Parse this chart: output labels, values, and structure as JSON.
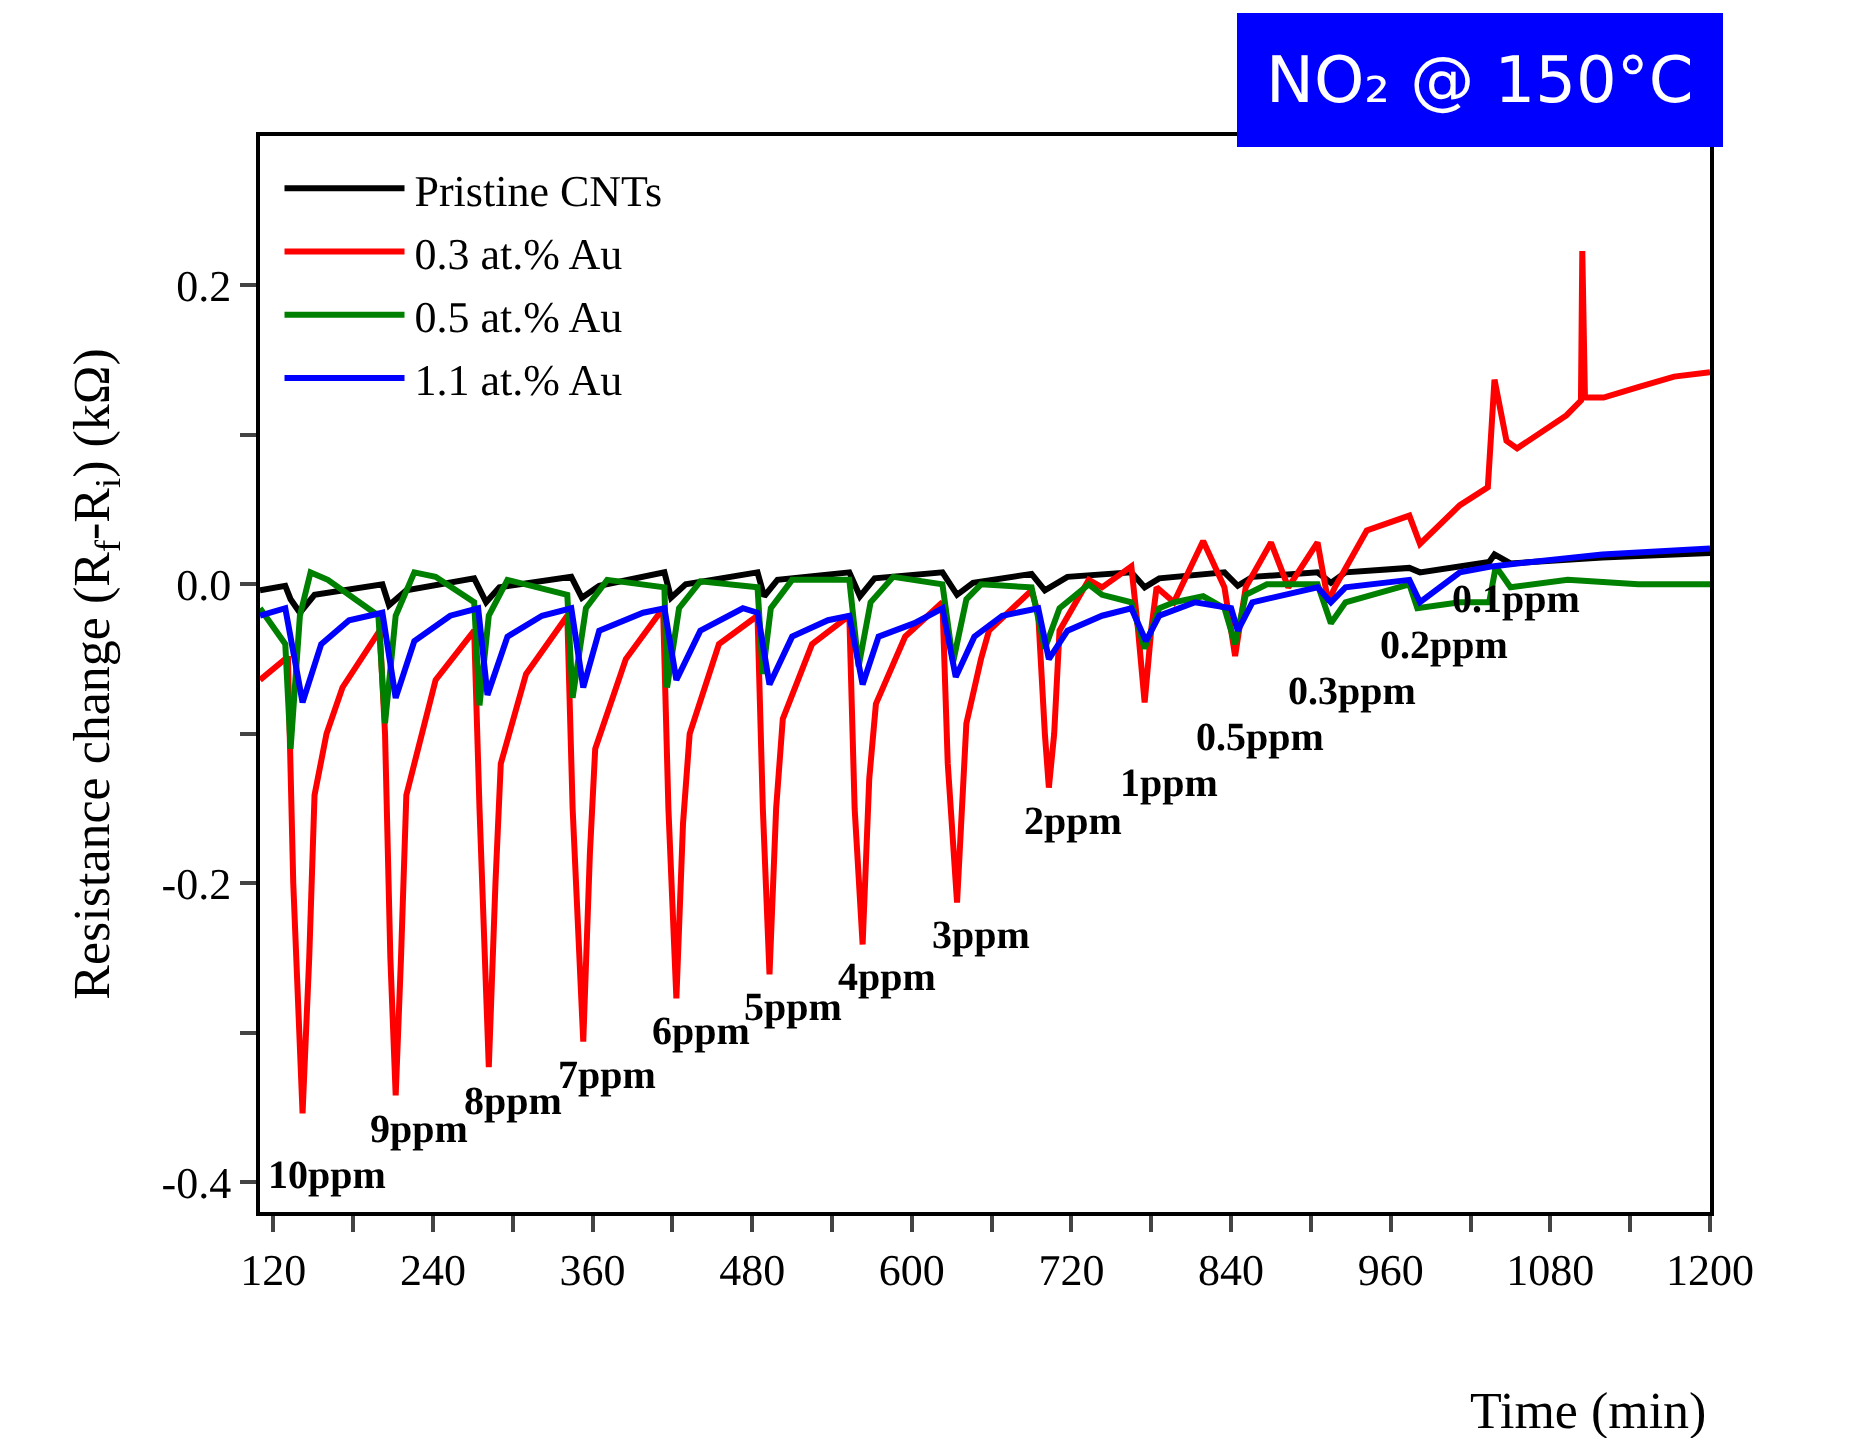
{
  "chart_data": {
    "type": "line",
    "title": "NO₂ @ 150°C",
    "xlabel": "Time (min)",
    "ylabel": "Resistance change (R$_{f}$-R$_{i}$) (kΩ)",
    "xlim": [
      110,
      1200
    ],
    "ylim": [
      -0.42,
      0.3
    ],
    "xticks": [
      120,
      {
        "value": 180,
        "label": null
      },
      240,
      {
        "value": 300,
        "label": null
      },
      360,
      {
        "value": 420,
        "label": null
      },
      480,
      {
        "value": 540,
        "label": null
      },
      600,
      {
        "value": 660,
        "label": null
      },
      720,
      {
        "value": 780,
        "label": null
      },
      840,
      {
        "value": 900,
        "label": null
      },
      960,
      {
        "value": 1020,
        "label": null
      },
      1080,
      {
        "value": 1140,
        "label": null
      },
      1200
    ],
    "yticks": [
      -0.4,
      {
        "value": -0.3,
        "label": null
      },
      -0.2,
      {
        "value": -0.1,
        "label": null
      },
      {
        "value": 0,
        "label": "0.0"
      },
      {
        "value": 0.1,
        "label": null
      },
      0.2
    ],
    "legend": "top left",
    "line_style": "solid",
    "marker": "none",
    "series": [
      {
        "name": "Pristine CNTs",
        "color": "#000000",
        "x": [
          110,
          129,
          133,
          140,
          151,
          202,
          207,
          220,
          271,
          280,
          290,
          344,
          352,
          365,
          414,
          419,
          430,
          484,
          489,
          499,
          553,
          561,
          572,
          623,
          634,
          646,
          690,
          700,
          717,
          765,
          775,
          786,
          835,
          845,
          856,
          905,
          915,
          926,
          974,
          982,
          1034,
          1038,
          1050,
          1119,
          1200
        ],
        "values": [
          -0.004,
          -0.001,
          -0.01,
          -0.019,
          -0.007,
          0.0,
          -0.014,
          -0.004,
          0.004,
          -0.012,
          -0.002,
          0.005,
          -0.009,
          -0.001,
          0.008,
          -0.009,
          0.0,
          0.008,
          -0.008,
          0.003,
          0.008,
          -0.008,
          0.004,
          0.008,
          -0.007,
          0.001,
          0.007,
          -0.004,
          0.005,
          0.008,
          -0.002,
          0.004,
          0.008,
          -0.001,
          0.005,
          0.008,
          0.001,
          0.008,
          0.011,
          0.008,
          0.015,
          0.02,
          0.014,
          0.018,
          0.021
        ]
      },
      {
        "name": "0.3 at.% Au",
        "color": "#ff0000",
        "x": [
          110,
          129,
          131,
          135,
          142,
          147,
          151,
          160,
          172,
          200,
          204,
          208,
          212,
          216,
          220,
          242,
          271,
          275,
          282,
          287,
          291,
          310,
          341,
          345,
          353,
          358,
          362,
          385,
          413,
          417,
          423,
          428,
          433,
          455,
          484,
          488,
          493,
          498,
          503,
          525,
          553,
          557,
          563,
          568,
          573,
          595,
          623,
          627,
          634,
          641,
          652,
          658,
          690,
          695,
          700,
          703,
          707,
          711,
          733,
          743,
          765,
          770,
          775,
          780,
          784,
          797,
          819,
          835,
          843,
          851,
          870,
          883,
          905,
          913,
          918,
          942,
          974,
          982,
          1012,
          1033,
          1038,
          1047,
          1055,
          1092,
          1103,
          1104,
          1106,
          1120,
          1146,
          1173,
          1200
        ],
        "values": [
          -0.064,
          -0.05,
          -0.05,
          -0.2,
          -0.354,
          -0.25,
          -0.141,
          -0.1,
          -0.069,
          -0.031,
          -0.1,
          -0.25,
          -0.342,
          -0.25,
          -0.141,
          -0.064,
          -0.031,
          -0.15,
          -0.323,
          -0.2,
          -0.12,
          -0.06,
          -0.021,
          -0.15,
          -0.306,
          -0.18,
          -0.11,
          -0.05,
          -0.016,
          -0.15,
          -0.277,
          -0.16,
          -0.1,
          -0.04,
          -0.021,
          -0.15,
          -0.261,
          -0.15,
          -0.09,
          -0.04,
          -0.021,
          -0.15,
          -0.241,
          -0.13,
          -0.08,
          -0.035,
          -0.012,
          -0.12,
          -0.213,
          -0.093,
          -0.05,
          -0.031,
          -0.004,
          -0.02,
          -0.1,
          -0.136,
          -0.1,
          -0.031,
          0.003,
          -0.002,
          0.012,
          -0.03,
          -0.079,
          -0.03,
          -0.002,
          -0.012,
          0.029,
          -0.002,
          -0.048,
          -0.002,
          0.028,
          -0.002,
          0.028,
          -0.012,
          -0.002,
          0.036,
          0.046,
          0.027,
          0.053,
          0.065,
          0.137,
          0.096,
          0.091,
          0.113,
          0.123,
          0.223,
          0.125,
          0.125,
          0.132,
          0.139,
          0.142
        ]
      },
      {
        "name": "0.5 at.% Au",
        "color": "#008000",
        "x": [
          110,
          129,
          133,
          140,
          148,
          161,
          199,
          204,
          212,
          226,
          242,
          271,
          275,
          282,
          296,
          341,
          345,
          355,
          371,
          414,
          416,
          425,
          441,
          484,
          488,
          494,
          510,
          553,
          560,
          569,
          586,
          623,
          631,
          641,
          652,
          690,
          700,
          711,
          733,
          743,
          765,
          775,
          786,
          797,
          819,
          835,
          843,
          851,
          867,
          905,
          915,
          926,
          974,
          980,
          1012,
          1034,
          1039,
          1050,
          1093,
          1146,
          1200
        ],
        "values": [
          -0.016,
          -0.04,
          -0.11,
          -0.021,
          0.008,
          0.003,
          -0.021,
          -0.093,
          -0.021,
          0.008,
          0.005,
          -0.012,
          -0.081,
          -0.021,
          0.003,
          -0.007,
          -0.076,
          -0.016,
          0.003,
          -0.002,
          -0.069,
          -0.016,
          0.002,
          -0.002,
          -0.06,
          -0.016,
          0.003,
          0.003,
          -0.055,
          -0.012,
          0.005,
          0.0,
          -0.052,
          -0.01,
          0.0,
          -0.002,
          -0.043,
          -0.016,
          0.0,
          -0.007,
          -0.012,
          -0.043,
          -0.016,
          -0.012,
          -0.008,
          -0.016,
          -0.04,
          -0.007,
          0.0,
          0.0,
          -0.026,
          -0.012,
          0.0,
          -0.016,
          -0.012,
          -0.012,
          0.012,
          -0.002,
          0.003,
          0.0,
          0.0
        ]
      },
      {
        "name": "1.1 at.% Au",
        "color": "#0000ff",
        "x": [
          110,
          129,
          142,
          156,
          177,
          202,
          212,
          226,
          253,
          274,
          281,
          296,
          322,
          344,
          353,
          365,
          398,
          414,
          423,
          441,
          473,
          484,
          493,
          510,
          537,
          553,
          563,
          575,
          602,
          623,
          633,
          647,
          668,
          695,
          703,
          717,
          743,
          765,
          776,
          786,
          813,
          840,
          845,
          856,
          905,
          915,
          926,
          974,
          982,
          1012,
          1036,
          1066,
          1119,
          1200
        ],
        "values": [
          -0.021,
          -0.016,
          -0.079,
          -0.04,
          -0.024,
          -0.019,
          -0.076,
          -0.038,
          -0.021,
          -0.016,
          -0.074,
          -0.035,
          -0.021,
          -0.016,
          -0.069,
          -0.031,
          -0.019,
          -0.016,
          -0.064,
          -0.031,
          -0.016,
          -0.019,
          -0.067,
          -0.035,
          -0.024,
          -0.021,
          -0.067,
          -0.035,
          -0.026,
          -0.016,
          -0.062,
          -0.035,
          -0.021,
          -0.016,
          -0.05,
          -0.031,
          -0.021,
          -0.016,
          -0.038,
          -0.021,
          -0.012,
          -0.016,
          -0.031,
          -0.012,
          -0.002,
          -0.012,
          -0.002,
          0.003,
          -0.012,
          0.008,
          0.012,
          0.015,
          0.02,
          0.024
        ]
      }
    ],
    "annotations": [
      {
        "text": "10ppm",
        "x": 142,
        "y": -0.354
      },
      {
        "text": "9ppm",
        "x": 212,
        "y": -0.342
      },
      {
        "text": "8ppm",
        "x": 282,
        "y": -0.323
      },
      {
        "text": "7ppm",
        "x": 353,
        "y": -0.306
      },
      {
        "text": "6ppm",
        "x": 423,
        "y": -0.277
      },
      {
        "text": "5ppm",
        "x": 493,
        "y": -0.261
      },
      {
        "text": "4ppm",
        "x": 563,
        "y": -0.241
      },
      {
        "text": "3ppm",
        "x": 634,
        "y": -0.213
      },
      {
        "text": "2ppm",
        "x": 703,
        "y": -0.136
      },
      {
        "text": "1ppm",
        "x": 775,
        "y": -0.079
      },
      {
        "text": "0.5ppm",
        "x": 843,
        "y": -0.048
      },
      {
        "text": "0.3ppm",
        "x": 913,
        "y": -0.012
      },
      {
        "text": "0.2ppm",
        "x": 982,
        "y": -0.012
      },
      {
        "text": "0.1ppm",
        "x": 1036,
        "y": 0.012
      }
    ]
  }
}
